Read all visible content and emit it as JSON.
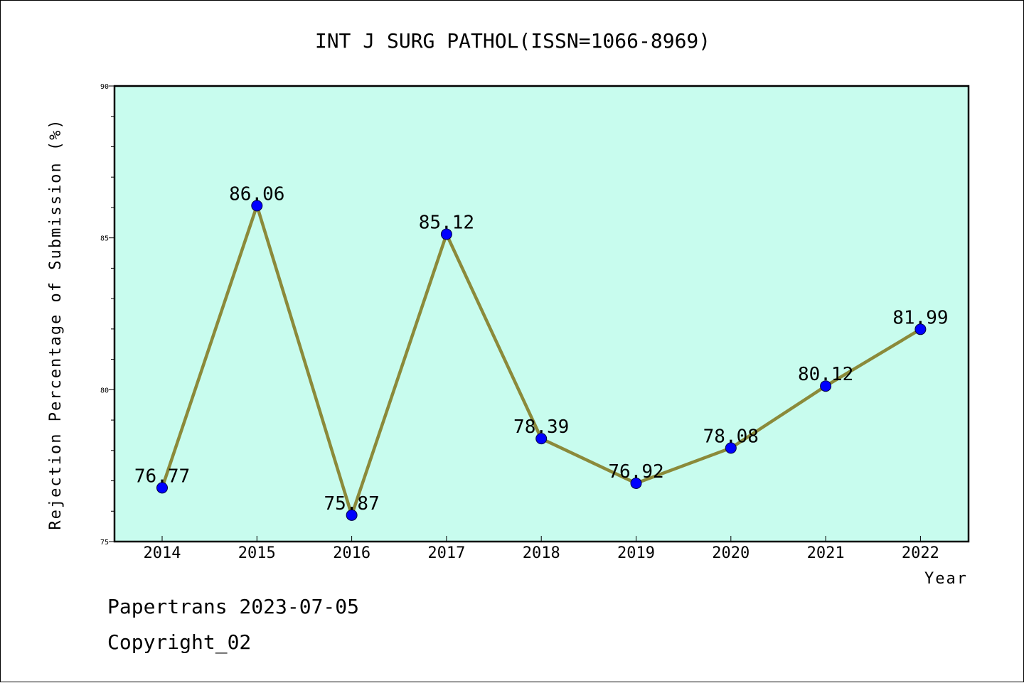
{
  "chart_data": {
    "type": "line",
    "title": "INT J SURG PATHOL(ISSN=1066-8969)",
    "xlabel": "Year",
    "ylabel": "Rejection Percentage of Submission (%)",
    "categories": [
      "2014",
      "2015",
      "2016",
      "2017",
      "2018",
      "2019",
      "2020",
      "2021",
      "2022"
    ],
    "values": [
      76.77,
      86.06,
      75.87,
      85.12,
      78.39,
      76.92,
      78.08,
      80.12,
      81.99
    ],
    "value_labels": [
      "76.77",
      "86.06",
      "75.87",
      "85.12",
      "78.39",
      "76.92",
      "78.08",
      "80.12",
      "81.99"
    ],
    "ylim": [
      75,
      90
    ],
    "yticks": [
      "75",
      "80",
      "85",
      "90"
    ],
    "grid": false,
    "colors": {
      "plot_background": "#c8fcee",
      "line": "#8b8a3a",
      "marker": "#0000ff"
    }
  },
  "footer": {
    "line1": "Papertrans 2023-07-05",
    "line2": "Copyright_02"
  }
}
